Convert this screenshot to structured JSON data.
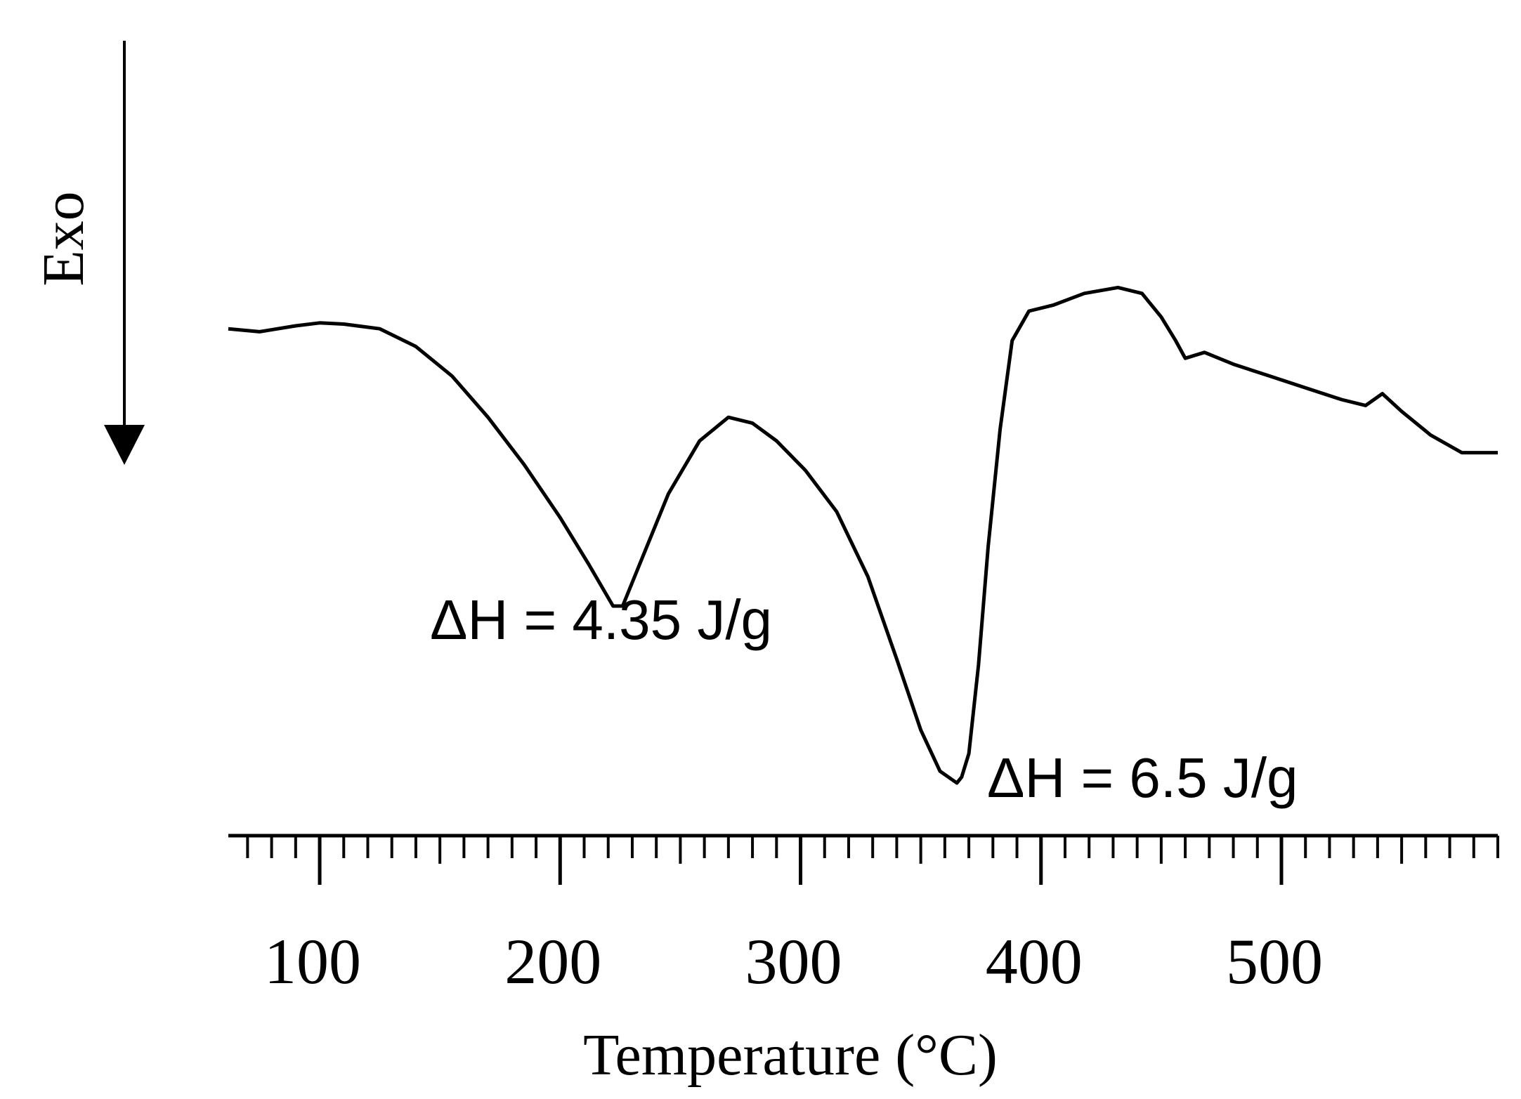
{
  "chart_data": {
    "type": "line",
    "title": "",
    "xlabel": "Temperature (°C)",
    "ylabel": "Exo",
    "xlim": [
      62,
      590
    ],
    "ylim": [
      0,
      100
    ],
    "y_direction_note": "Exo",
    "x_ticks": [
      100,
      200,
      300,
      400,
      500
    ],
    "grid": false,
    "legend": "none",
    "series": [
      {
        "x": [
          62,
          75,
          90,
          100,
          110,
          125,
          140,
          155,
          170,
          185,
          200,
          212,
          222,
          226,
          233,
          245,
          258,
          270,
          280,
          290,
          302,
          315,
          328,
          340,
          350,
          358,
          365,
          367,
          370,
          374,
          378,
          383,
          388,
          395,
          405,
          418,
          432,
          442,
          450,
          456,
          460,
          468,
          480,
          495,
          510,
          525,
          535,
          542,
          550,
          562,
          575,
          590
        ],
        "values": [
          77,
          76.5,
          77.5,
          78,
          77.8,
          77,
          74,
          69,
          62,
          54,
          45,
          37,
          30,
          30,
          37,
          49,
          58,
          62,
          61,
          58,
          53,
          46,
          35,
          21,
          9,
          2,
          0,
          1,
          5,
          20,
          40,
          60,
          75,
          80,
          81,
          83,
          84,
          83,
          79,
          75,
          72,
          73,
          71,
          69,
          67,
          65,
          64,
          66,
          63,
          59,
          56,
          56
        ]
      }
    ],
    "annotations": [
      {
        "text": "ΔH = 4.35 J/g",
        "x": 226,
        "y": 30
      },
      {
        "text": "ΔH = 6.5 J/g",
        "x": 367,
        "y": 0
      }
    ]
  }
}
